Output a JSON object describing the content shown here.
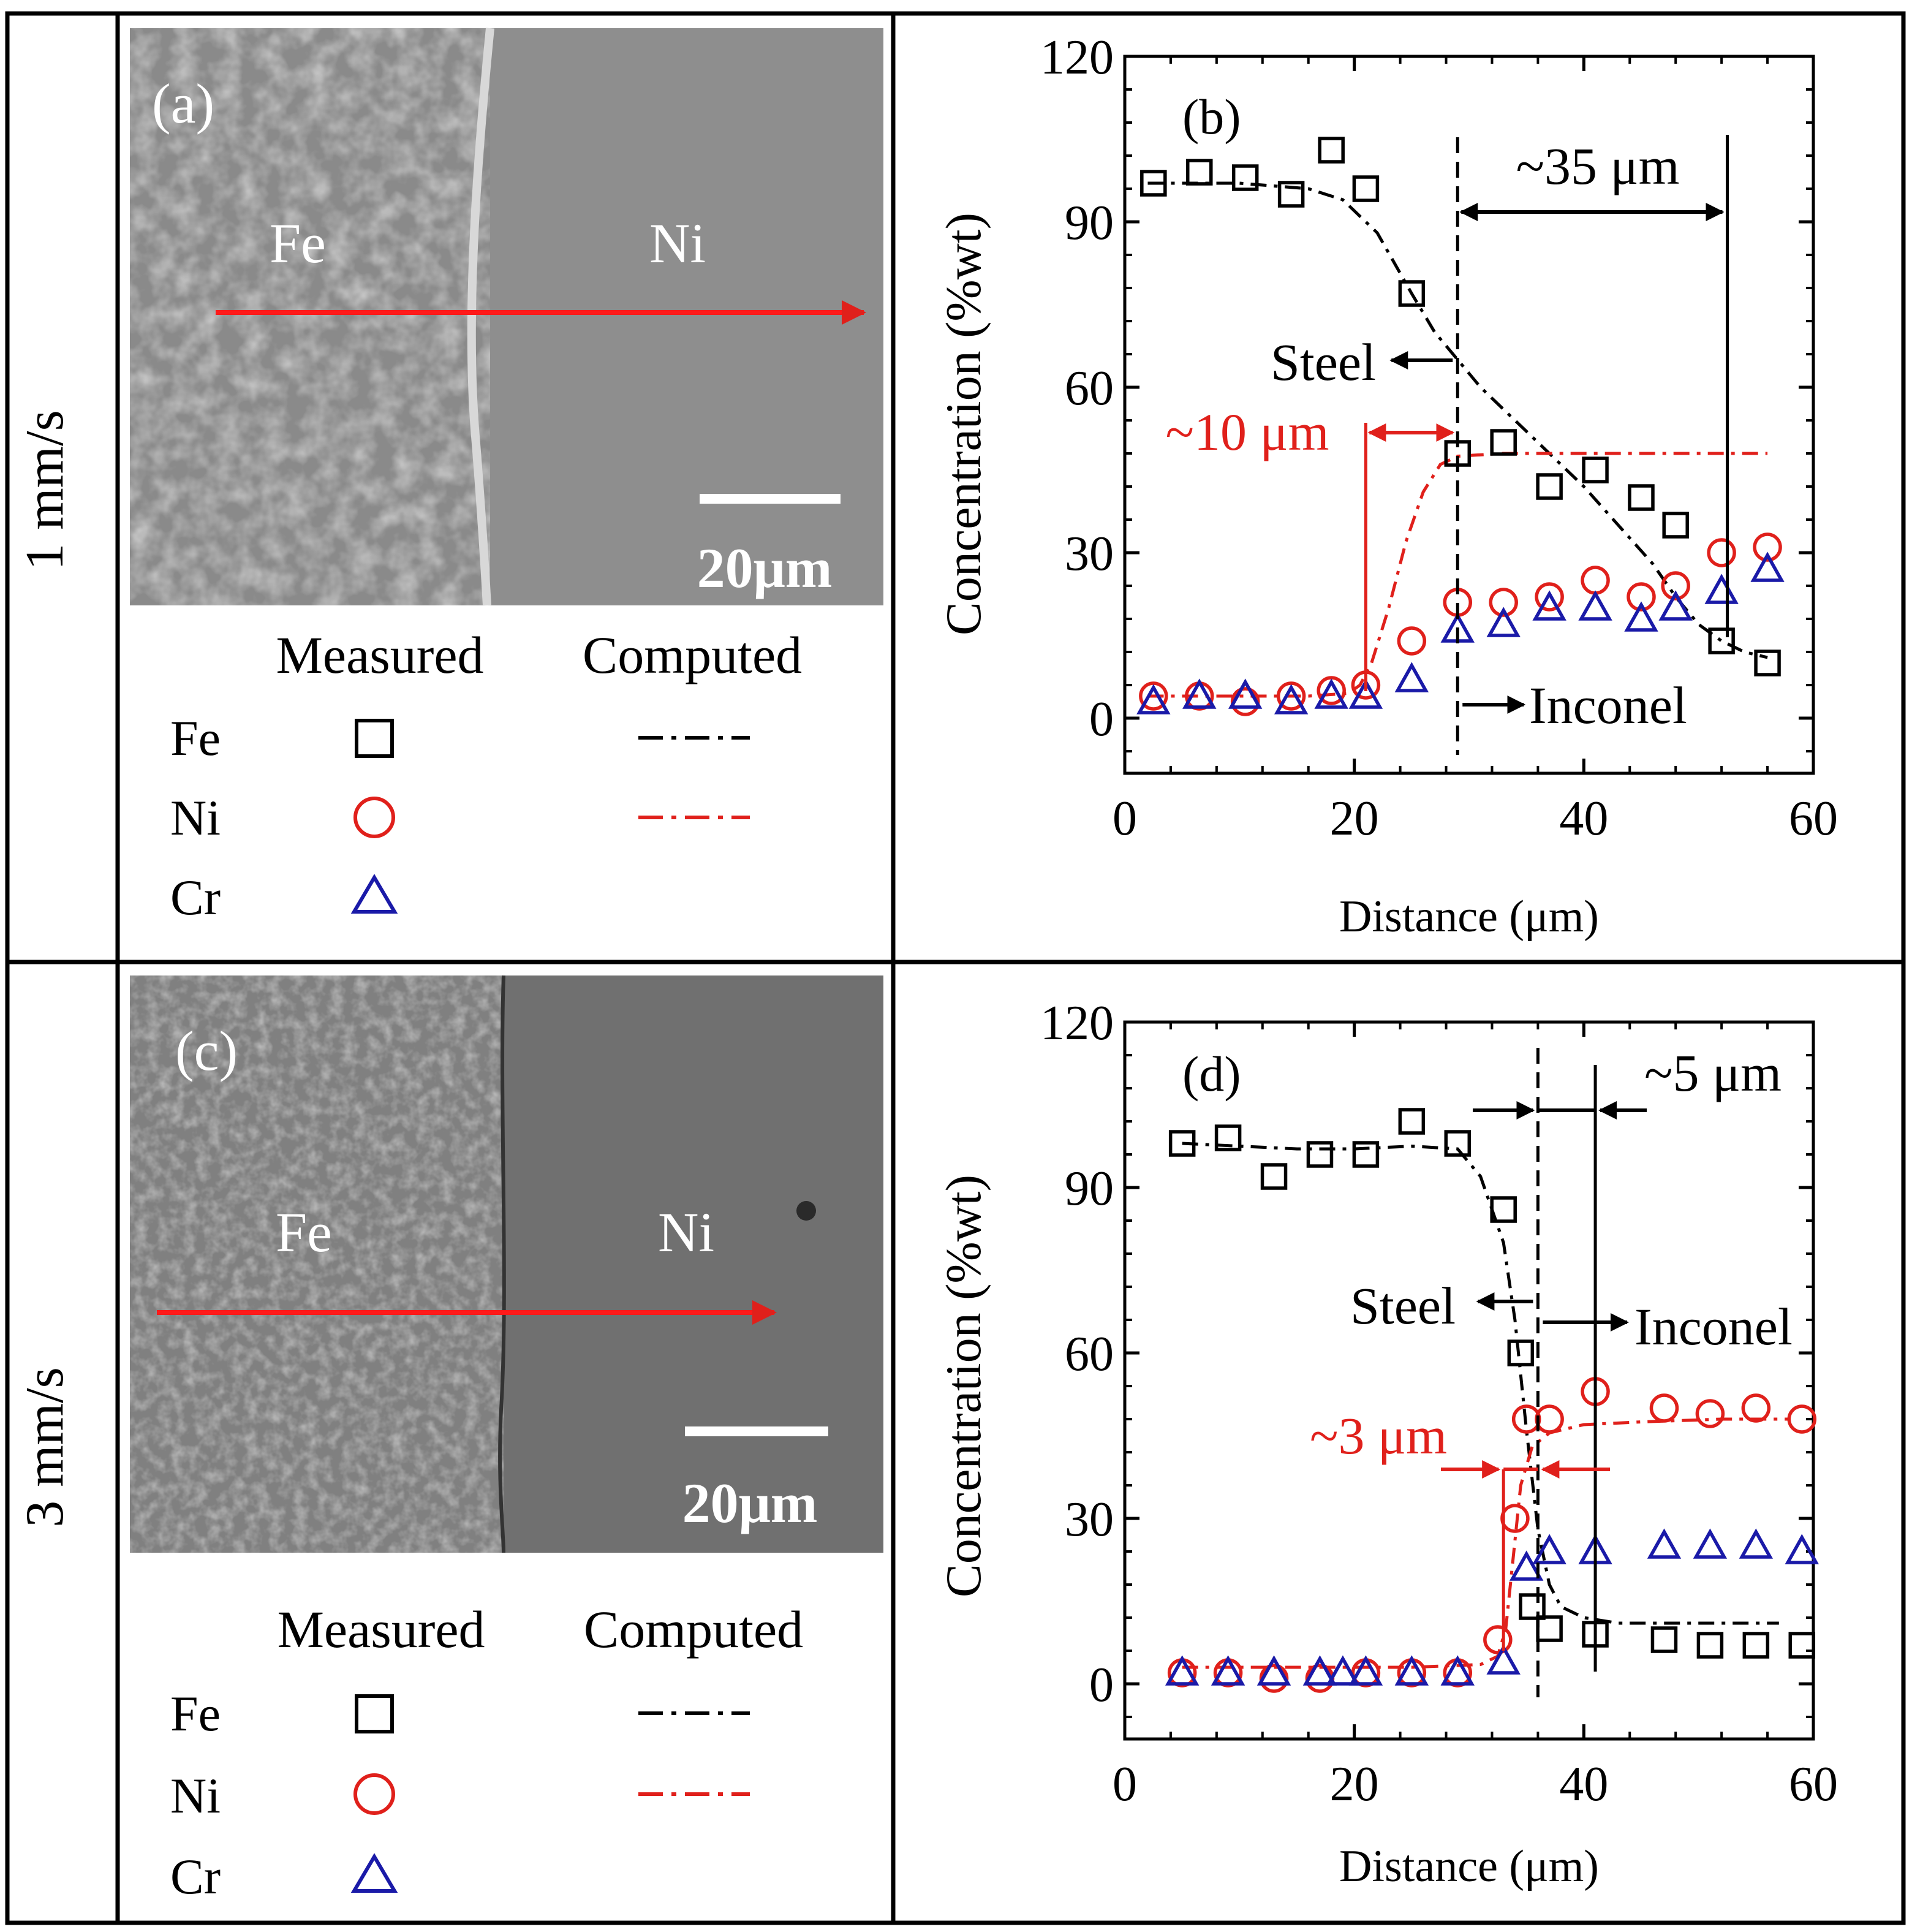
{
  "rows": [
    {
      "label": "1 mm/s"
    },
    {
      "label": "3 mm/s"
    }
  ],
  "micrographs": [
    {
      "panel": "(a)",
      "left_label": "Fe",
      "right_label": "Ni",
      "scale_bar": "20μm"
    },
    {
      "panel": "(c)",
      "left_label": "Fe",
      "right_label": "Ni",
      "scale_bar": "20μm"
    }
  ],
  "legend": {
    "measured_header": "Measured",
    "computed_header": "Computed",
    "entries": [
      {
        "element": "Fe",
        "marker": "square",
        "color": "#000000"
      },
      {
        "element": "Ni",
        "marker": "circle",
        "color": "#e0201b"
      },
      {
        "element": "Cr",
        "marker": "triangle",
        "color": "#1a1aa8"
      }
    ]
  },
  "colors": {
    "fe": "#000000",
    "ni": "#e0201b",
    "cr": "#1a1aa8"
  },
  "chart_data": [
    {
      "panel": "(b)",
      "type": "scatter",
      "xlabel": "Distance (μm)",
      "ylabel": "Concentration (%wt)",
      "xlim": [
        0,
        60
      ],
      "ylim": [
        -10,
        120
      ],
      "xticks": [
        0,
        20,
        40,
        60
      ],
      "yticks": [
        0,
        30,
        60,
        90,
        120
      ],
      "series": [
        {
          "name": "Fe",
          "kind": "measured",
          "marker": "square",
          "x": [
            2.5,
            6.5,
            10.5,
            14.5,
            18,
            21,
            25,
            29,
            33,
            37,
            41,
            45,
            48,
            52,
            56
          ],
          "y": [
            97,
            99,
            98,
            95,
            103,
            96,
            77,
            48,
            50,
            42,
            45,
            40,
            35,
            14,
            10
          ]
        },
        {
          "name": "Ni",
          "kind": "measured",
          "marker": "circle",
          "x": [
            2.5,
            6.5,
            10.5,
            14.5,
            18,
            21,
            25,
            29,
            33,
            37,
            41,
            45,
            48,
            52,
            56
          ],
          "y": [
            4,
            4,
            3,
            4,
            5,
            6,
            14,
            21,
            21,
            22,
            25,
            22,
            24,
            30,
            31
          ]
        },
        {
          "name": "Cr",
          "kind": "measured",
          "marker": "triangle",
          "x": [
            2.5,
            6.5,
            10.5,
            14.5,
            18,
            21,
            25,
            29,
            33,
            37,
            41,
            45,
            48,
            52,
            56
          ],
          "y": [
            3,
            4,
            4,
            3,
            4,
            4,
            7,
            16,
            17,
            20,
            20,
            18,
            20,
            23,
            27
          ]
        },
        {
          "name": "Fe",
          "kind": "computed",
          "x": [
            2,
            10,
            16,
            19,
            22,
            25,
            27,
            29,
            31,
            34,
            37,
            40,
            43,
            46,
            48,
            50,
            52,
            54,
            56
          ],
          "y": [
            97,
            97,
            96,
            94,
            88,
            77,
            70,
            65,
            60,
            54,
            48,
            42,
            35,
            28,
            22,
            17,
            14,
            12,
            11
          ]
        },
        {
          "name": "Ni",
          "kind": "computed",
          "x": [
            2,
            10,
            16,
            19.5,
            20.5,
            21.5,
            23,
            24.5,
            26,
            27.5,
            29,
            33,
            40,
            48,
            56
          ],
          "y": [
            4,
            4,
            4,
            4.5,
            6,
            10,
            20,
            32,
            41,
            46,
            47.5,
            48,
            48,
            48,
            48
          ]
        }
      ],
      "annotations": [
        {
          "text": "(b)"
        },
        {
          "text": "~35 μm"
        },
        {
          "text": "~10 μm"
        },
        {
          "text": "Steel"
        },
        {
          "text": "Inconel"
        }
      ],
      "dashed_line_x": 29,
      "solid_lines_x": [
        21,
        52.5
      ]
    },
    {
      "panel": "(d)",
      "type": "scatter",
      "xlabel": "Distance (μm)",
      "ylabel": "Concentration (%wt)",
      "xlim": [
        0,
        60
      ],
      "ylim": [
        -10,
        120
      ],
      "xticks": [
        0,
        20,
        40,
        60
      ],
      "yticks": [
        0,
        30,
        60,
        90,
        120
      ],
      "series": [
        {
          "name": "Fe",
          "kind": "measured",
          "marker": "square",
          "x": [
            5,
            9,
            13,
            17,
            21,
            25,
            29,
            33,
            34.5,
            35.5,
            37,
            41,
            47,
            51,
            55,
            59
          ],
          "y": [
            98,
            99,
            92,
            96,
            96,
            102,
            98,
            86,
            60,
            14,
            10,
            9,
            8,
            7,
            7,
            7
          ]
        },
        {
          "name": "Ni",
          "kind": "measured",
          "marker": "circle",
          "x": [
            5,
            9,
            13,
            17,
            21,
            25,
            29,
            32.5,
            34,
            35,
            37,
            41,
            47,
            51,
            55,
            59
          ],
          "y": [
            2,
            2,
            1,
            1,
            2,
            2,
            2,
            8,
            30,
            48,
            48,
            53,
            50,
            49,
            50,
            48
          ]
        },
        {
          "name": "Cr",
          "kind": "measured",
          "marker": "triangle",
          "x": [
            5,
            9,
            13,
            17,
            19,
            21,
            25,
            29,
            33,
            35,
            37,
            41,
            47,
            51,
            55,
            59
          ],
          "y": [
            2,
            2,
            2,
            2,
            2,
            2,
            2,
            2,
            4,
            21,
            24,
            24,
            25,
            25,
            25,
            24
          ]
        },
        {
          "name": "Fe",
          "kind": "computed",
          "x": [
            5,
            10,
            15,
            20,
            25,
            29,
            31,
            33,
            34,
            35,
            36,
            37,
            38,
            40,
            43,
            48,
            53,
            57
          ],
          "y": [
            98,
            97.5,
            97,
            97,
            97.5,
            97,
            92,
            80,
            66,
            46,
            28,
            18,
            14,
            12,
            11,
            11,
            11,
            11
          ]
        },
        {
          "name": "Ni",
          "kind": "computed",
          "x": [
            5,
            15,
            25,
            31,
            32.5,
            33.2,
            33.8,
            34.5,
            35.5,
            37,
            40,
            45,
            52,
            58
          ],
          "y": [
            3,
            3,
            3,
            3.5,
            5,
            10,
            22,
            36,
            43,
            45.5,
            47,
            47.5,
            48,
            48
          ]
        }
      ],
      "annotations": [
        {
          "text": "(d)"
        },
        {
          "text": "~5 μm"
        },
        {
          "text": "~3 μm"
        },
        {
          "text": "Steel"
        },
        {
          "text": "Inconel"
        }
      ],
      "dashed_line_x": 36,
      "solid_lines_x": [
        33,
        41
      ]
    }
  ]
}
